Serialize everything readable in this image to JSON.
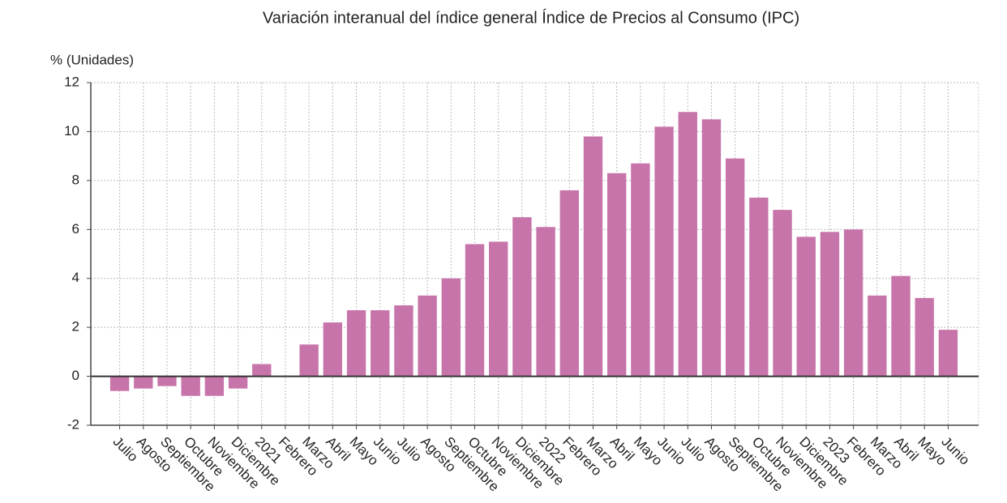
{
  "chart_data": {
    "type": "bar",
    "title": "Variación interanual del índice general Índice de Precios al Consumo (IPC)",
    "y_label": "% (Unidades)",
    "categories": [
      "Julio",
      "Agosto",
      "Septiembre",
      "Octubre",
      "Noviembre",
      "Diciembre",
      "2021",
      "Febrero",
      "Marzo",
      "Abril",
      "Mayo",
      "Junio",
      "Julio",
      "Agosto",
      "Septiembre",
      "Octubre",
      "Noviembre",
      "Diciembre",
      "2022",
      "Febrero",
      "Marzo",
      "Abril",
      "Mayo",
      "Junio",
      "Julio",
      "Agosto",
      "Septiembre",
      "Octubre",
      "Noviembre",
      "Diciembre",
      "2023",
      "Febrero",
      "Marzo",
      "Abril",
      "Mayo",
      "Junio"
    ],
    "values": [
      -0.6,
      -0.5,
      -0.4,
      -0.8,
      -0.8,
      -0.5,
      0.5,
      0.0,
      1.3,
      2.2,
      2.7,
      2.7,
      2.9,
      3.3,
      4.0,
      5.4,
      5.5,
      6.5,
      6.1,
      7.6,
      9.8,
      8.3,
      8.7,
      10.2,
      10.8,
      10.5,
      8.9,
      7.3,
      6.8,
      5.7,
      5.9,
      6.0,
      3.3,
      4.1,
      3.2,
      1.9
    ],
    "color": "#c774ab",
    "ylim": [
      -2,
      12
    ],
    "yticks": [
      -2,
      0,
      2,
      4,
      6,
      8,
      10,
      12
    ],
    "grid": true
  }
}
